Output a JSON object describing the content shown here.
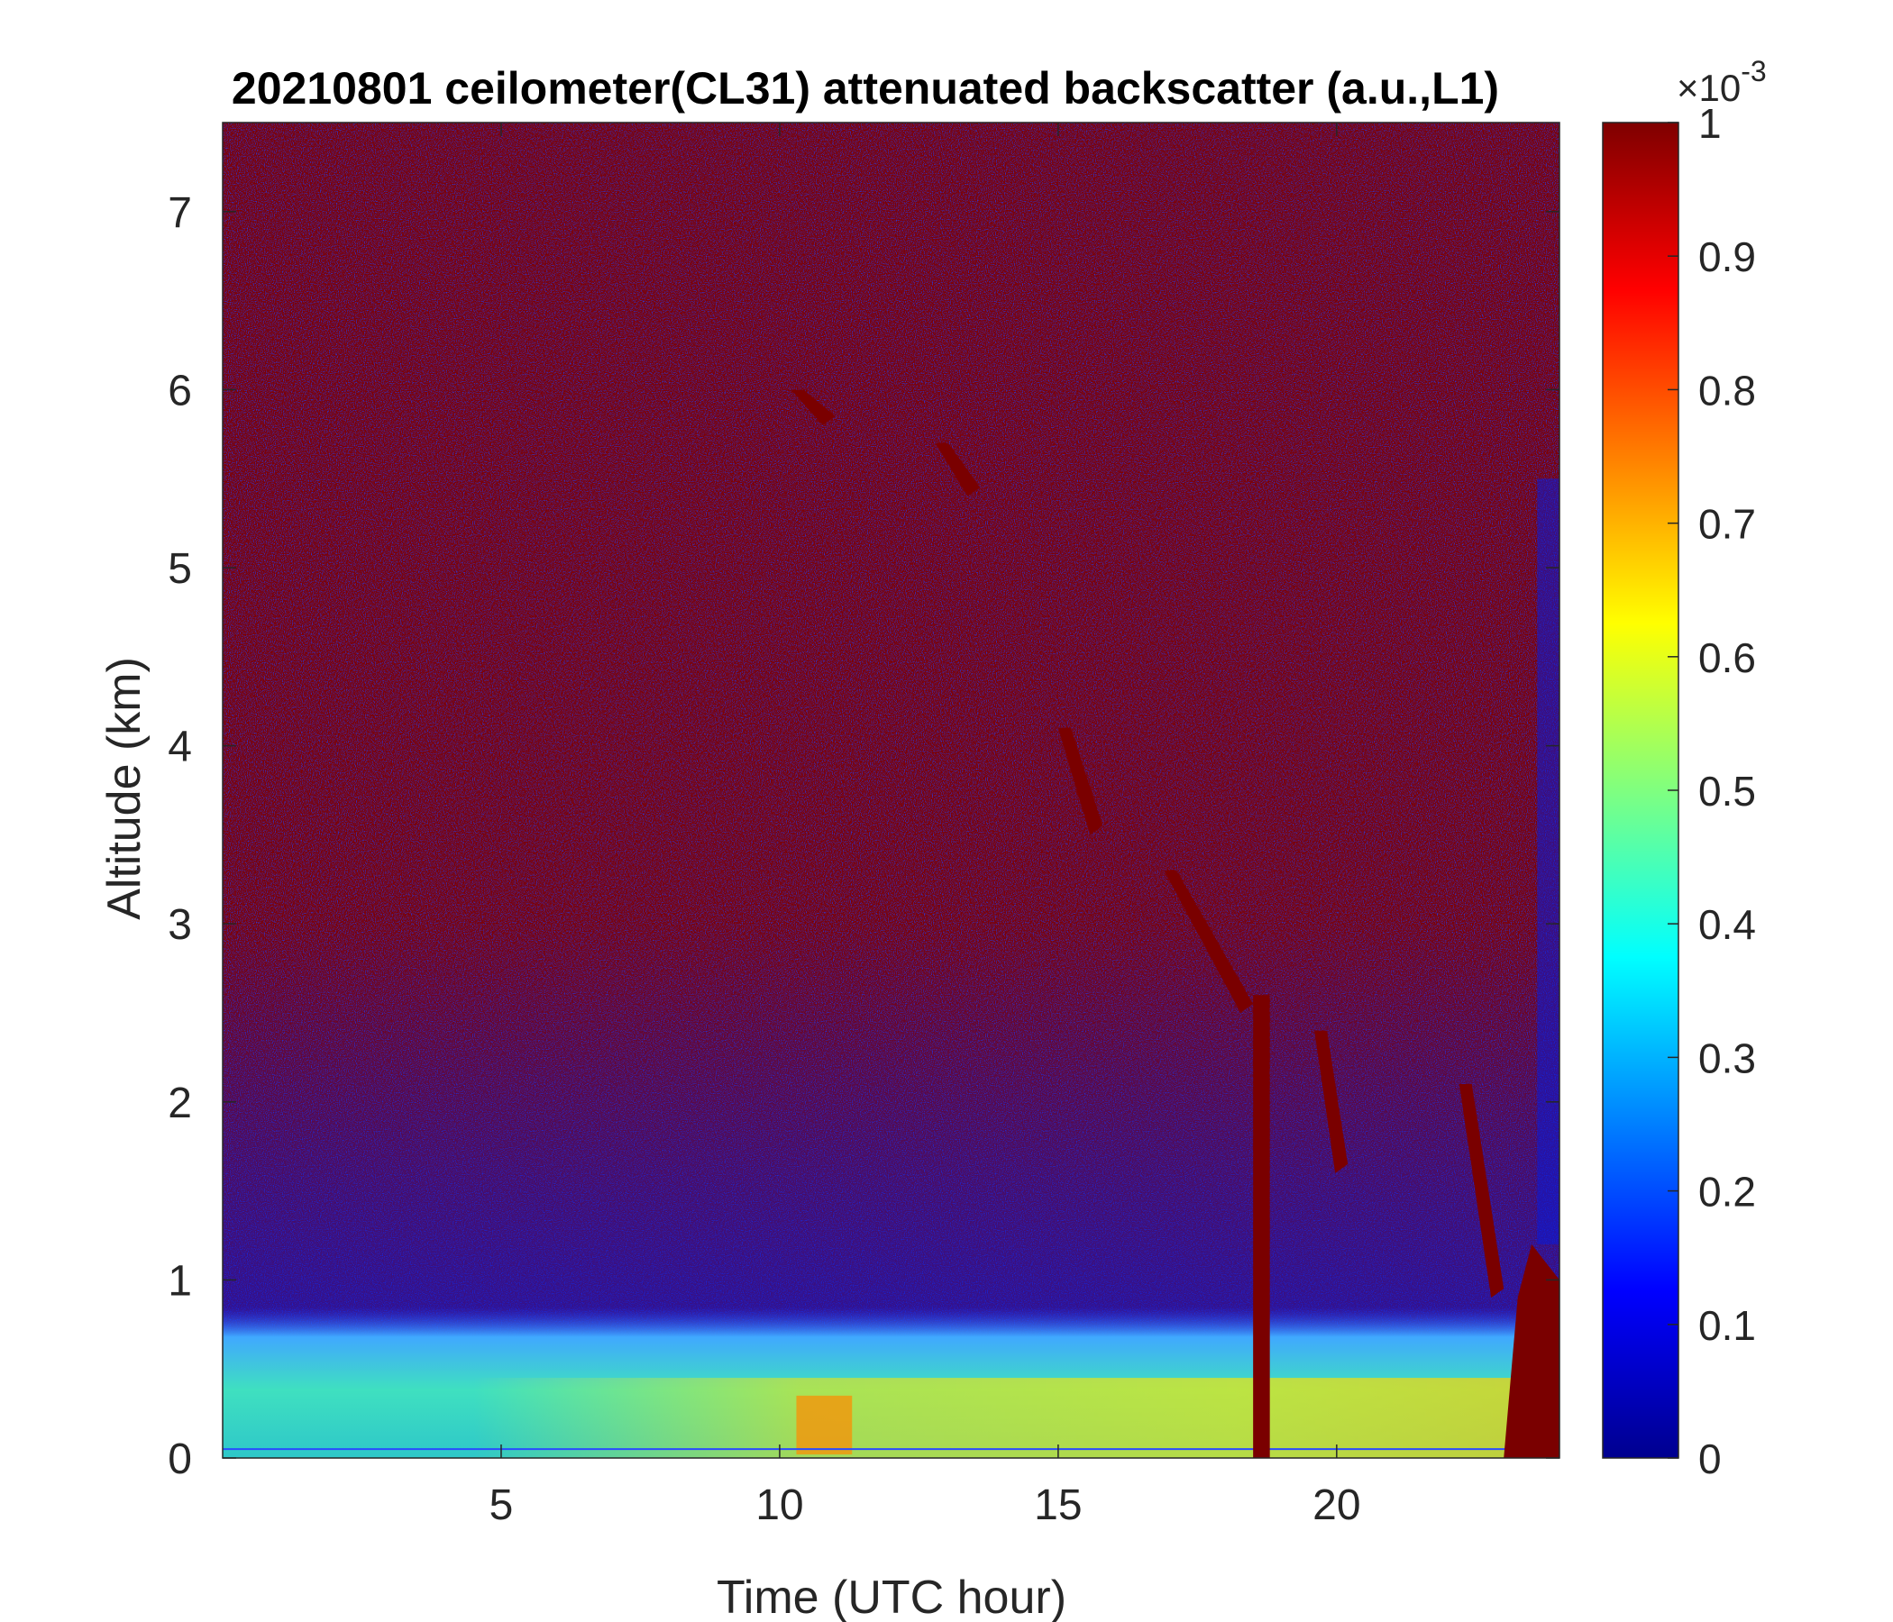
{
  "chart_data": {
    "type": "heatmap",
    "title": "20210801 ceilometer(CL31) attenuated backscatter (a.u.,L1)",
    "xlabel": "Time (UTC hour)",
    "ylabel": "Altitude (km)",
    "xlim": [
      0,
      24
    ],
    "ylim": [
      0,
      7.5
    ],
    "x_ticks": [
      5,
      10,
      15,
      20
    ],
    "x_tick_labels": [
      "5",
      "10",
      "15",
      "20"
    ],
    "y_ticks": [
      0,
      1,
      2,
      3,
      4,
      5,
      6,
      7
    ],
    "y_tick_labels": [
      "0",
      "1",
      "2",
      "3",
      "4",
      "5",
      "6",
      "7"
    ],
    "colorbar": {
      "colormap": "jet",
      "range": [
        0,
        1
      ],
      "ticks": [
        0,
        0.1,
        0.2,
        0.3,
        0.4,
        0.5,
        0.6,
        0.7,
        0.8,
        0.9,
        1
      ],
      "tick_labels": [
        "0",
        "0.1",
        "0.2",
        "0.3",
        "0.4",
        "0.5",
        "0.6",
        "0.7",
        "0.8",
        "0.9",
        "1"
      ],
      "exponent_label": "×10",
      "exponent": "-3"
    },
    "background_color": "#7f0000",
    "noise_color": "#00008f",
    "features": [
      {
        "kind": "boundary-layer aerosol",
        "x": [
          0,
          24
        ],
        "y": [
          0,
          0.6
        ]
      },
      {
        "kind": "cloud streak",
        "x": [
          10.2,
          11
        ],
        "y": [
          5.8,
          6.0
        ]
      },
      {
        "kind": "cloud streak",
        "x": [
          12.8,
          13.6
        ],
        "y": [
          5.4,
          5.7
        ]
      },
      {
        "kind": "cloud streak",
        "x": [
          15.0,
          15.8
        ],
        "y": [
          3.5,
          4.1
        ]
      },
      {
        "kind": "cloud streak",
        "x": [
          16.9,
          18.5
        ],
        "y": [
          2.5,
          3.3
        ]
      },
      {
        "kind": "cloud column",
        "x": [
          18.5,
          18.8
        ],
        "y": [
          0,
          2.6
        ]
      },
      {
        "kind": "cloud streak",
        "x": [
          19.6,
          20.2
        ],
        "y": [
          1.6,
          2.4
        ]
      },
      {
        "kind": "cloud streak",
        "x": [
          22.2,
          23.0
        ],
        "y": [
          0.9,
          2.1
        ]
      },
      {
        "kind": "low cloud",
        "x": [
          23.0,
          24
        ],
        "y": [
          0,
          1.2
        ]
      }
    ]
  }
}
